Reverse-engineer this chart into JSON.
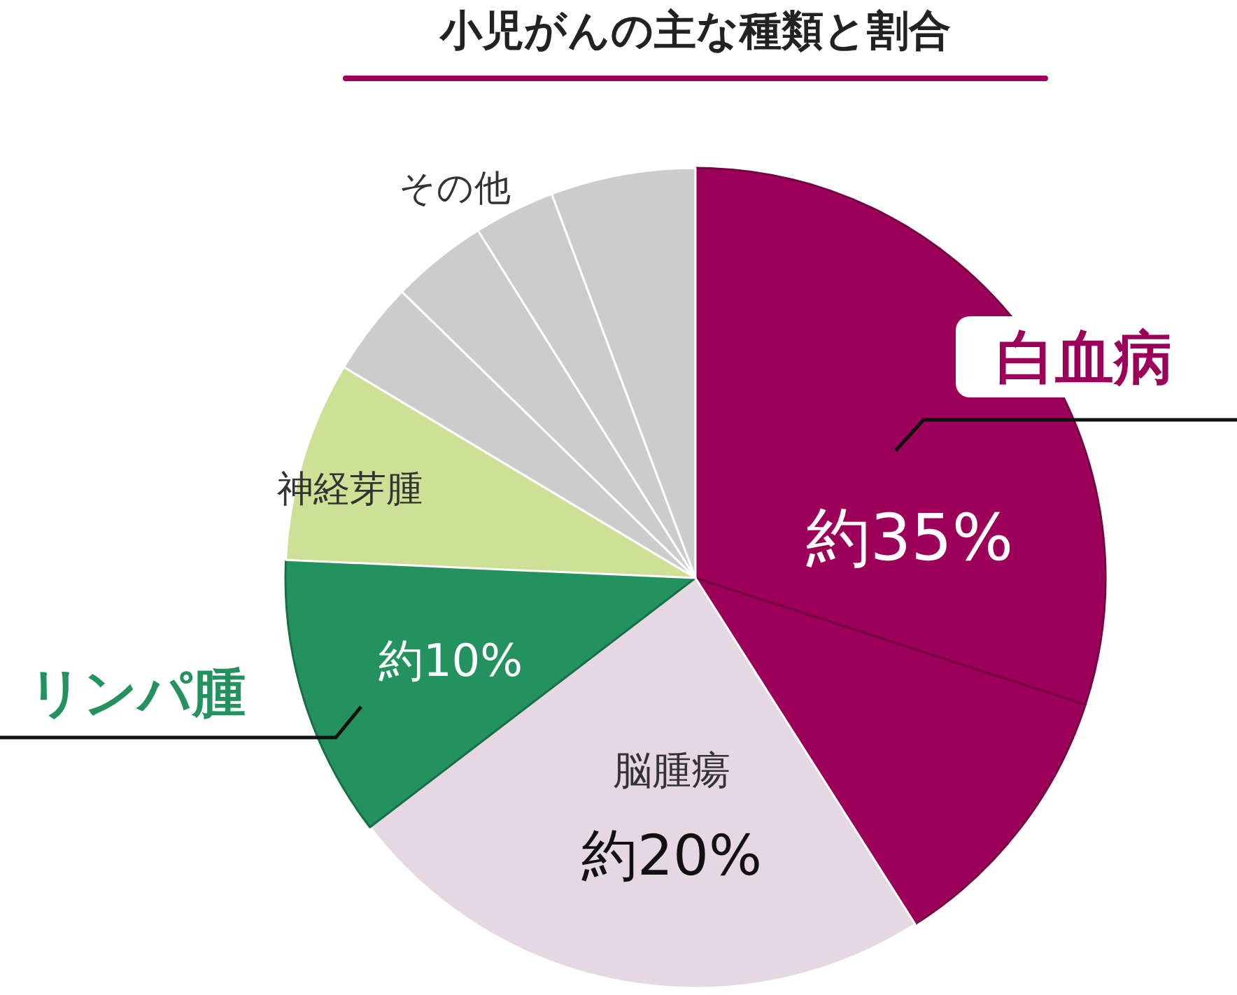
{
  "chart_data": {
    "type": "pie",
    "title": "小児がんの主な種類と割合",
    "categories": [
      "白血病",
      null,
      "脳腫瘍",
      "リンパ腫",
      "神経芽腫",
      null,
      null,
      "その他",
      null
    ],
    "values": [
      30.0,
      11.0,
      23.6,
      11.1,
      7.9,
      3.7,
      3.8,
      3.2,
      5.7
    ],
    "colors": [
      "#9c0058",
      "#9c0058",
      "#e6d8e3",
      "#23925f",
      "#cde096",
      "#cccccc",
      "#cccccc",
      "#cccccc",
      "#cccccc"
    ],
    "value_labels": [
      "約35%",
      null,
      "約20%",
      "約10%",
      null,
      null,
      null,
      null,
      null
    ]
  }
}
